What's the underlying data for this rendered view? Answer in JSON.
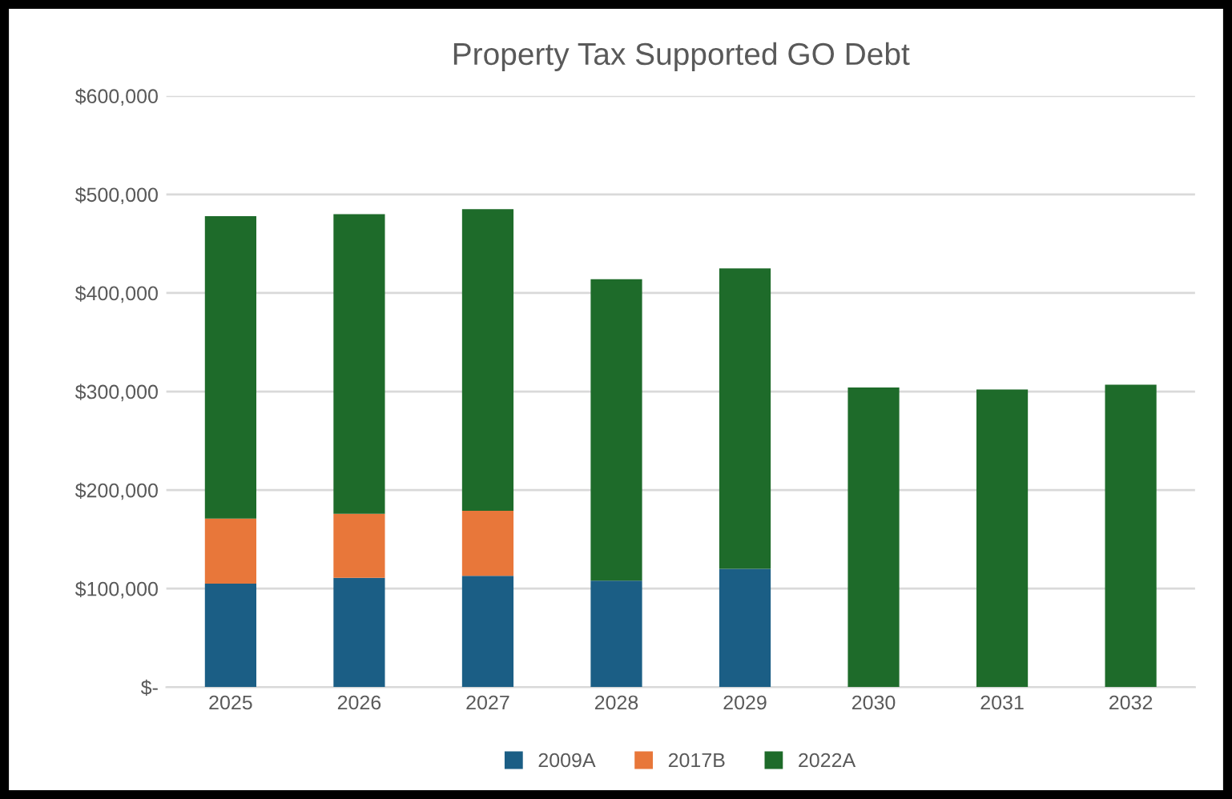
{
  "chart_data": {
    "type": "bar",
    "title": "Property Tax Supported GO Debt",
    "stacked": true,
    "categories": [
      "2025",
      "2026",
      "2027",
      "2028",
      "2029",
      "2030",
      "2031",
      "2032"
    ],
    "series": [
      {
        "name": "2009A",
        "color": "#1b5e85",
        "values": [
          105000,
          111000,
          113000,
          108000,
          120000,
          null,
          null,
          null
        ]
      },
      {
        "name": "2017B",
        "color": "#e8773a",
        "values": [
          66000,
          65000,
          66000,
          null,
          null,
          null,
          null,
          null
        ]
      },
      {
        "name": "2022A",
        "color": "#1e6b2a",
        "values": [
          307000,
          304000,
          306000,
          306000,
          305000,
          304000,
          302000,
          307000
        ]
      }
    ],
    "ylim": [
      0,
      600000
    ],
    "yticks": [
      {
        "value": 0,
        "label": "$-"
      },
      {
        "value": 100000,
        "label": "$100,000"
      },
      {
        "value": 200000,
        "label": "$200,000"
      },
      {
        "value": 300000,
        "label": "$300,000"
      },
      {
        "value": 400000,
        "label": "$400,000"
      },
      {
        "value": 500000,
        "label": "$500,000"
      },
      {
        "value": 600000,
        "label": "$600,000"
      }
    ],
    "grid": "y",
    "legend": "bottom"
  }
}
